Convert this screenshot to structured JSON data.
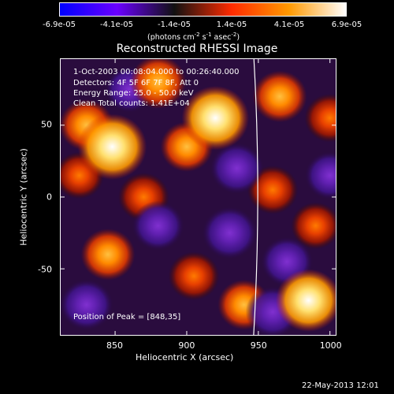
{
  "colorbar": {
    "ticks": [
      "-6.9e-05",
      "-4.1e-05",
      "-1.4e-05",
      "1.4e-05",
      "4.1e-05",
      "6.9e-05"
    ],
    "unit_main": "(photons cm",
    "unit_sup1": "-2",
    "unit_mid": " s",
    "unit_sup2": "-1",
    "unit_end": " asec",
    "unit_sup3": "-2",
    "unit_close": ")",
    "colors": [
      "#0000ff",
      "#6a00ff",
      "#111111",
      "#ff2b00",
      "#ff9900",
      "#ffffff"
    ]
  },
  "title": "Reconstructed RHESSI Image",
  "info": {
    "line1": "1-Oct-2003 00:08:04.000 to 00:26:40.000",
    "line2": "Detectors: 4F 5F 6F 7F 8F, Att 0",
    "line3": "Energy Range: 25.0 - 50.0 keV",
    "line4": "Clean    Total counts: 1.41E+04",
    "peak": "Position of Peak = [848,35]"
  },
  "footer_date": "22-May-2013 12:01",
  "chart_data": {
    "type": "heatmap",
    "title": "Reconstructed RHESSI Image",
    "xlabel": "Heliocentric X (arcsec)",
    "ylabel": "Heliocentric Y (arcsec)",
    "xlim": [
      812,
      1004
    ],
    "ylim": [
      -96,
      96
    ],
    "xticks": [
      850,
      900,
      950,
      1000
    ],
    "yticks": [
      50,
      0,
      -50
    ],
    "colorbar_range": [
      -6.9e-05,
      6.9e-05
    ],
    "colorbar_ticks": [
      -6.9e-05,
      -4.1e-05,
      -1.4e-05,
      1.4e-05,
      4.1e-05,
      6.9e-05
    ],
    "peak_position": [
      848,
      35
    ],
    "sources": [
      {
        "x": 848,
        "y": 35,
        "v": 1.0
      },
      {
        "x": 920,
        "y": 55,
        "v": 0.95
      },
      {
        "x": 830,
        "y": 50,
        "v": 0.55
      },
      {
        "x": 880,
        "y": 80,
        "v": 0.6
      },
      {
        "x": 965,
        "y": 70,
        "v": 0.55
      },
      {
        "x": 985,
        "y": -72,
        "v": 0.9
      },
      {
        "x": 845,
        "y": -40,
        "v": 0.55
      },
      {
        "x": 900,
        "y": 35,
        "v": 0.5
      },
      {
        "x": 960,
        "y": 5,
        "v": 0.45
      },
      {
        "x": 990,
        "y": -20,
        "v": 0.4
      },
      {
        "x": 870,
        "y": 0,
        "v": 0.45
      },
      {
        "x": 905,
        "y": -55,
        "v": 0.45
      },
      {
        "x": 940,
        "y": -75,
        "v": 0.5
      },
      {
        "x": 825,
        "y": 15,
        "v": 0.4
      },
      {
        "x": 1000,
        "y": 55,
        "v": 0.45
      },
      {
        "x": 935,
        "y": 20,
        "v": -0.55
      },
      {
        "x": 880,
        "y": -20,
        "v": -0.5
      },
      {
        "x": 930,
        "y": -25,
        "v": -0.6
      },
      {
        "x": 970,
        "y": -45,
        "v": -0.5
      },
      {
        "x": 830,
        "y": -75,
        "v": -0.55
      },
      {
        "x": 1000,
        "y": 15,
        "v": -0.45
      },
      {
        "x": 860,
        "y": 75,
        "v": -0.4
      },
      {
        "x": 960,
        "y": -80,
        "v": -0.55
      }
    ],
    "limb_line": {
      "x_top": 948,
      "x_bottom": 950
    }
  }
}
